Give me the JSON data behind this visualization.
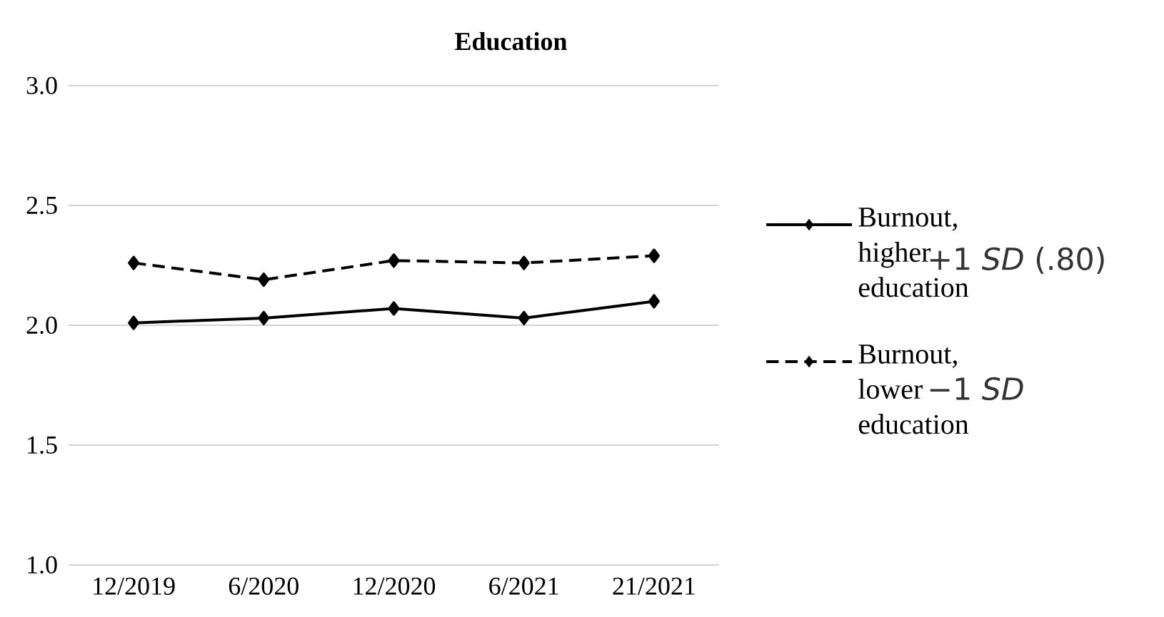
{
  "chart_data": {
    "type": "line",
    "title": "Education",
    "categories": [
      "12/2019",
      "6/2020",
      "12/2020",
      "6/2021",
      "21/2021"
    ],
    "series": [
      {
        "name": "Burnout, higher education",
        "color": "#000000",
        "line_style": "solid",
        "values": [
          2.01,
          2.03,
          2.07,
          2.03,
          2.1
        ]
      },
      {
        "name": "Burnout, lower education",
        "color": "#000000",
        "line_style": "dashed",
        "values": [
          2.26,
          2.19,
          2.27,
          2.26,
          2.29
        ]
      }
    ],
    "ylim": [
      1,
      3
    ],
    "yticks": [
      {
        "value": 1,
        "label": "1.0"
      },
      {
        "value": 1.5,
        "label": "1.5"
      },
      {
        "value": 2,
        "label": "2.0"
      },
      {
        "value": 2.5,
        "label": "2.5"
      },
      {
        "value": 3,
        "label": "3.0"
      }
    ],
    "grid": "y",
    "legend": "right",
    "marker": "diamond",
    "annotations": [
      "+1 *SD* (.80)",
      "−1 *SD*"
    ]
  }
}
